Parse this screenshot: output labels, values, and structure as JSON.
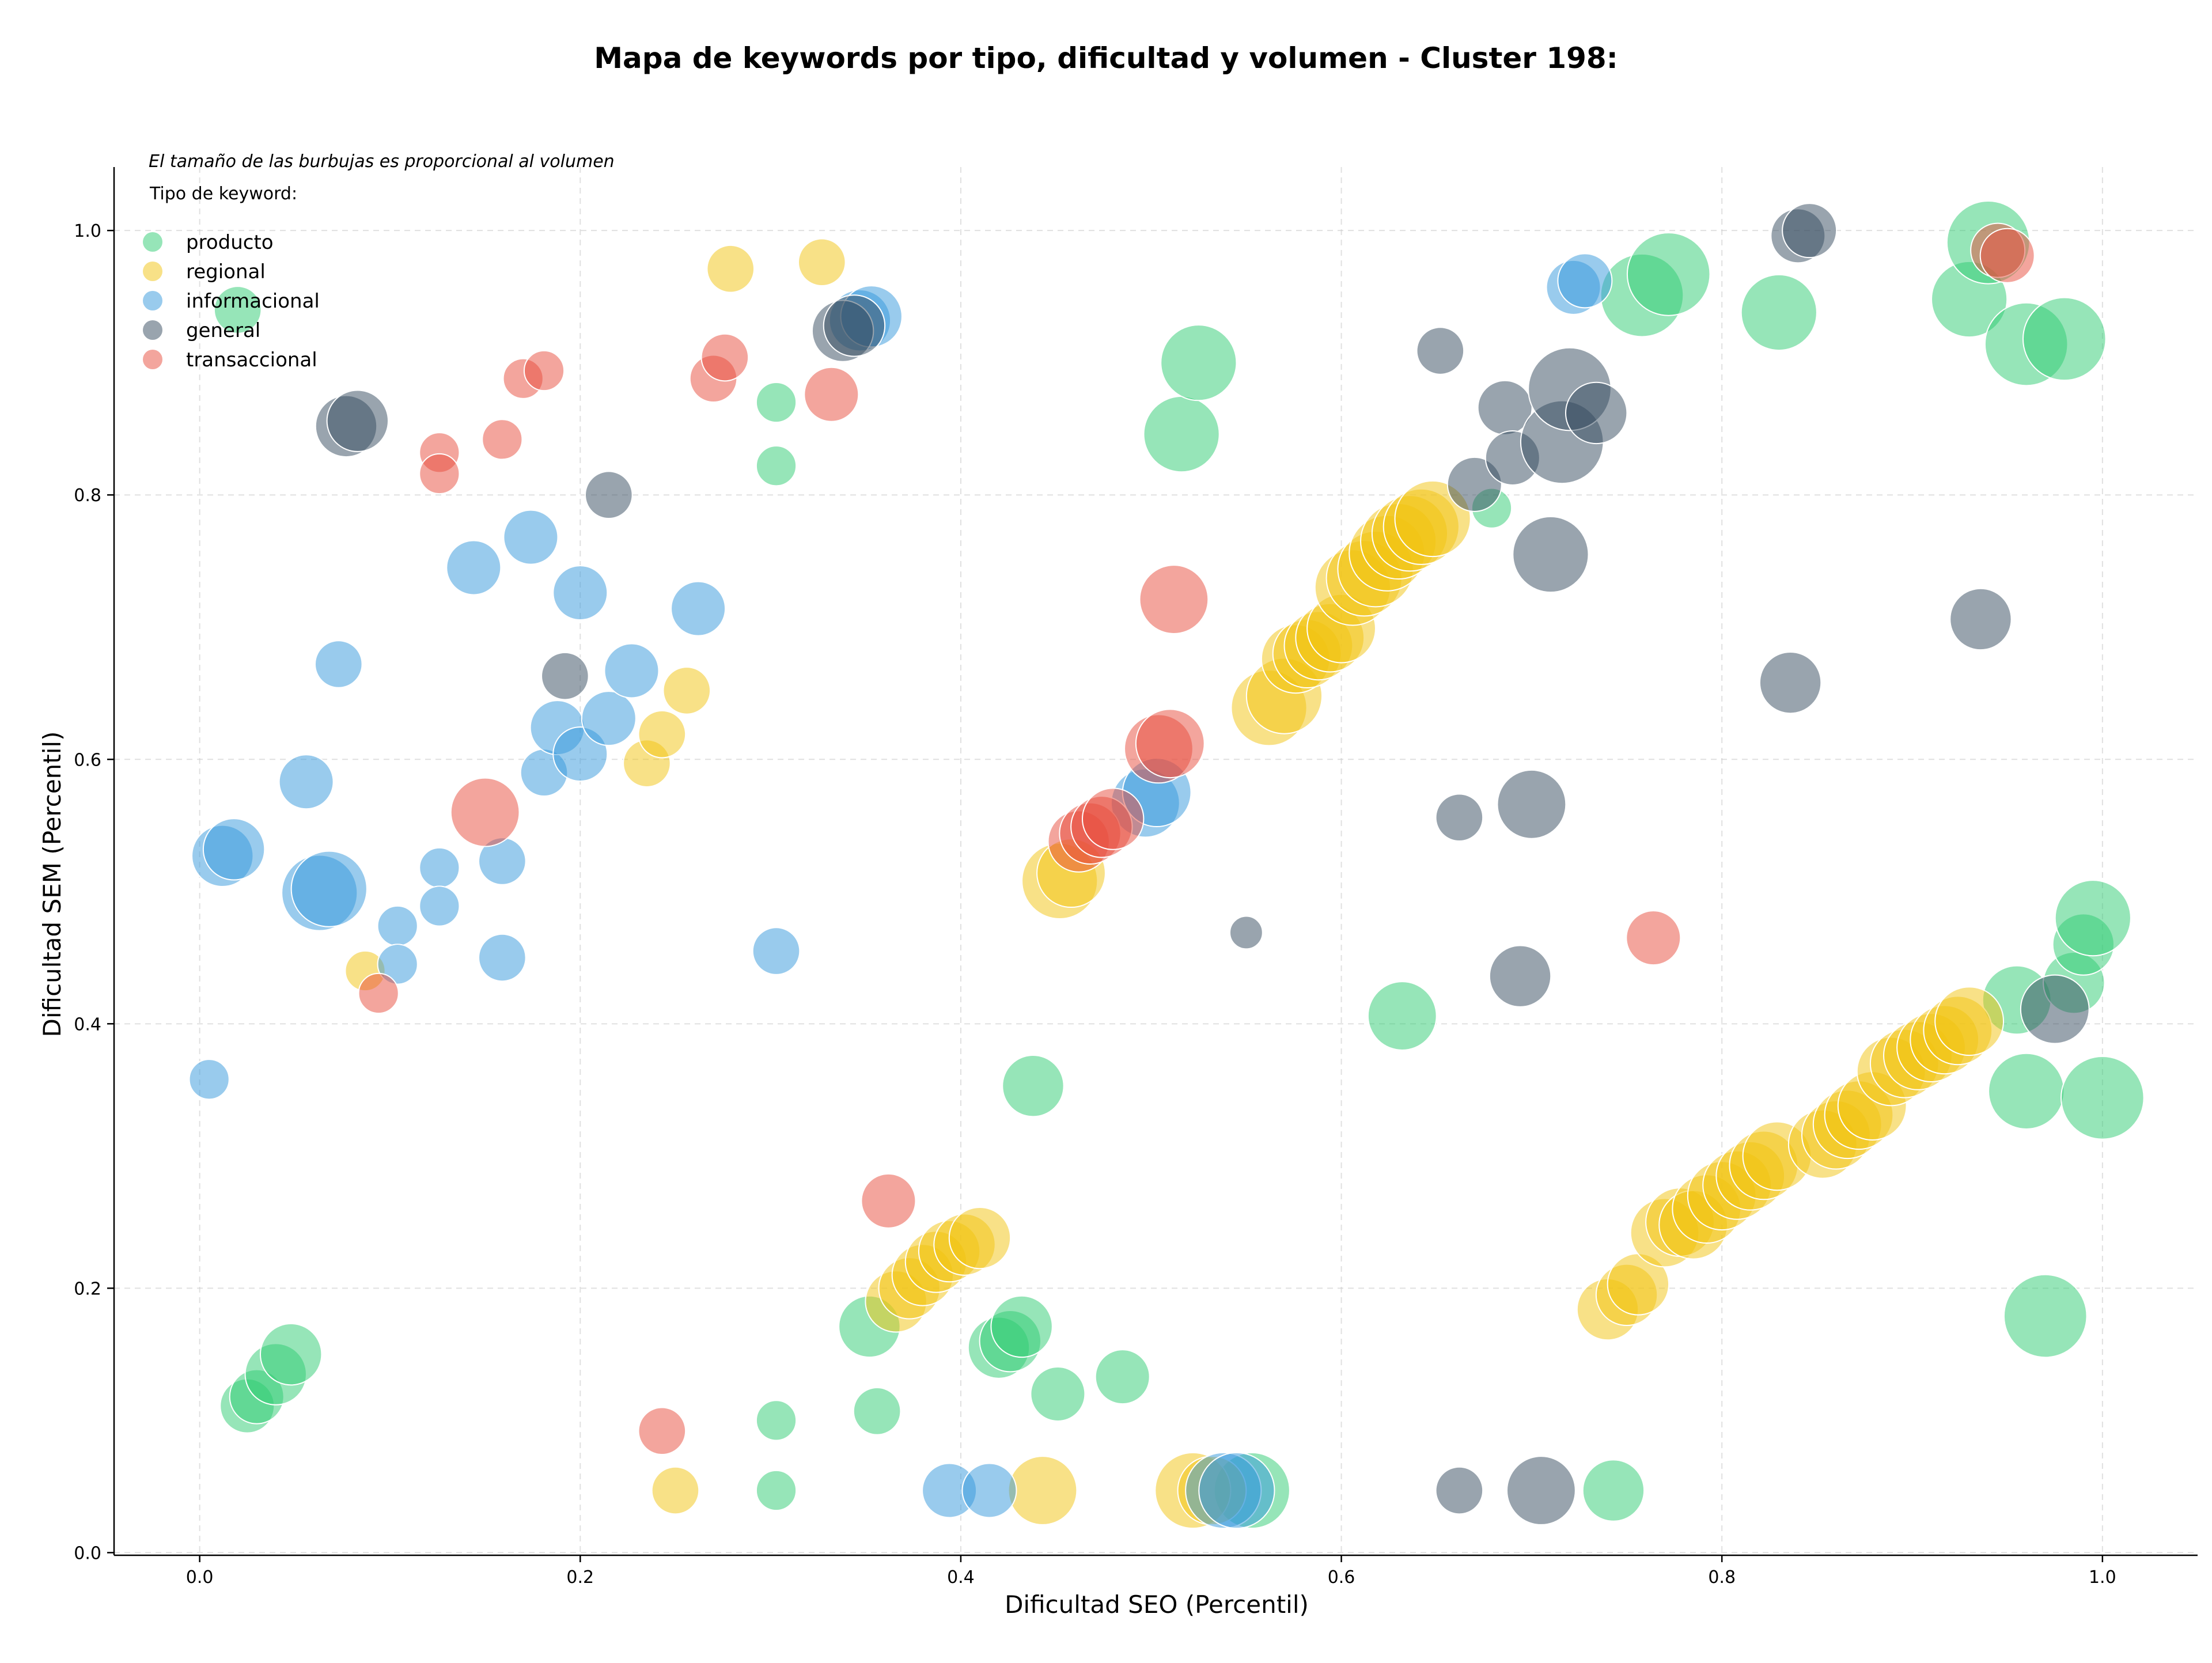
{
  "chart_data": {
    "type": "scatter",
    "title": "Mapa de keywords por tipo, dificultad y volumen - Cluster 198:",
    "xlabel": "Dificultad SEO (Percentil)",
    "ylabel": "Dificultad SEM (Percentil)",
    "xlim": [
      -0.045,
      1.05
    ],
    "ylim": [
      -0.002,
      1.048
    ],
    "xticks": [
      "0.0",
      "0.2",
      "0.4",
      "0.6",
      "0.8",
      "1.0"
    ],
    "yticks": [
      "0.0",
      "0.2",
      "0.4",
      "0.6",
      "0.8",
      "1.0"
    ],
    "grid": true,
    "legend_placement": "top-left",
    "legend_note": "El tamaño de las burbujas es proporcional al volumen",
    "legend_title": "Tipo de keyword:",
    "size_note": "bubble size proportional to volume (relative scale 1-10)",
    "series": [
      {
        "name": "producto",
        "color": "#2ecc71",
        "points": [
          [
            0.02,
            0.94,
            4
          ],
          [
            0.025,
            0.111,
            5
          ],
          [
            0.03,
            0.118,
            5
          ],
          [
            0.04,
            0.135,
            6
          ],
          [
            0.048,
            0.15,
            6
          ],
          [
            0.303,
            0.87,
            3
          ],
          [
            0.303,
            0.822,
            3
          ],
          [
            0.303,
            0.1,
            3
          ],
          [
            0.303,
            0.047,
            3
          ],
          [
            0.352,
            0.171,
            6
          ],
          [
            0.356,
            0.107,
            4
          ],
          [
            0.42,
            0.155,
            6
          ],
          [
            0.426,
            0.16,
            6
          ],
          [
            0.432,
            0.171,
            6
          ],
          [
            0.438,
            0.353,
            6
          ],
          [
            0.451,
            0.12,
            5
          ],
          [
            0.485,
            0.133,
            5
          ],
          [
            0.516,
            0.846,
            8
          ],
          [
            0.525,
            0.9,
            8
          ],
          [
            0.553,
            0.047,
            8
          ],
          [
            0.632,
            0.406,
            7
          ],
          [
            0.679,
            0.79,
            3
          ],
          [
            0.743,
            0.047,
            6
          ],
          [
            0.758,
            0.951,
            9
          ],
          [
            0.772,
            0.967,
            9
          ],
          [
            0.83,
            0.938,
            8
          ],
          [
            0.93,
            0.948,
            8
          ],
          [
            0.94,
            0.991,
            9
          ],
          [
            0.96,
            0.914,
            9
          ],
          [
            0.98,
            0.918,
            9
          ],
          [
            0.955,
            0.418,
            7
          ],
          [
            0.96,
            0.349,
            8
          ],
          [
            0.985,
            0.431,
            6
          ],
          [
            0.99,
            0.46,
            6
          ],
          [
            0.995,
            0.48,
            8
          ],
          [
            1.0,
            0.344,
            9
          ],
          [
            0.97,
            0.179,
            9
          ]
        ]
      },
      {
        "name": "regional",
        "color": "#f1c40f",
        "points": [
          [
            0.087,
            0.44,
            3
          ],
          [
            0.235,
            0.597,
            4
          ],
          [
            0.243,
            0.619,
            4
          ],
          [
            0.256,
            0.652,
            4
          ],
          [
            0.25,
            0.047,
            4
          ],
          [
            0.279,
            0.971,
            4
          ],
          [
            0.327,
            0.976,
            4
          ],
          [
            0.366,
            0.19,
            6
          ],
          [
            0.373,
            0.2,
            6
          ],
          [
            0.38,
            0.21,
            6
          ],
          [
            0.387,
            0.22,
            6
          ],
          [
            0.394,
            0.228,
            6
          ],
          [
            0.402,
            0.233,
            6
          ],
          [
            0.41,
            0.238,
            6
          ],
          [
            0.443,
            0.047,
            7
          ],
          [
            0.452,
            0.508,
            8
          ],
          [
            0.458,
            0.514,
            7
          ],
          [
            0.522,
            0.047,
            8
          ],
          [
            0.532,
            0.047,
            7
          ],
          [
            0.562,
            0.639,
            8
          ],
          [
            0.57,
            0.648,
            8
          ],
          [
            0.576,
            0.676,
            7
          ],
          [
            0.582,
            0.68,
            7
          ],
          [
            0.588,
            0.686,
            7
          ],
          [
            0.594,
            0.692,
            7
          ],
          [
            0.6,
            0.699,
            7
          ],
          [
            0.606,
            0.73,
            8
          ],
          [
            0.612,
            0.737,
            8
          ],
          [
            0.618,
            0.744,
            8
          ],
          [
            0.624,
            0.756,
            8
          ],
          [
            0.63,
            0.765,
            8
          ],
          [
            0.636,
            0.771,
            8
          ],
          [
            0.642,
            0.776,
            8
          ],
          [
            0.648,
            0.782,
            8
          ],
          [
            0.74,
            0.184,
            6
          ],
          [
            0.75,
            0.195,
            6
          ],
          [
            0.756,
            0.203,
            6
          ],
          [
            0.77,
            0.242,
            7
          ],
          [
            0.778,
            0.25,
            7
          ],
          [
            0.785,
            0.248,
            7
          ],
          [
            0.792,
            0.26,
            7
          ],
          [
            0.8,
            0.27,
            7
          ],
          [
            0.808,
            0.278,
            7
          ],
          [
            0.815,
            0.285,
            7
          ],
          [
            0.822,
            0.293,
            7
          ],
          [
            0.829,
            0.3,
            7
          ],
          [
            0.853,
            0.309,
            7
          ],
          [
            0.86,
            0.316,
            7
          ],
          [
            0.866,
            0.324,
            7
          ],
          [
            0.872,
            0.331,
            7
          ],
          [
            0.879,
            0.338,
            7
          ],
          [
            0.889,
            0.364,
            7
          ],
          [
            0.896,
            0.37,
            7
          ],
          [
            0.903,
            0.376,
            7
          ],
          [
            0.91,
            0.382,
            7
          ],
          [
            0.917,
            0.388,
            7
          ],
          [
            0.924,
            0.395,
            7
          ],
          [
            0.93,
            0.402,
            7
          ]
        ]
      },
      {
        "name": "informacional",
        "color": "#3498db",
        "points": [
          [
            0.005,
            0.358,
            3
          ],
          [
            0.012,
            0.527,
            6
          ],
          [
            0.018,
            0.532,
            6
          ],
          [
            0.056,
            0.583,
            5
          ],
          [
            0.063,
            0.499,
            8
          ],
          [
            0.068,
            0.502,
            8
          ],
          [
            0.073,
            0.672,
            4
          ],
          [
            0.104,
            0.474,
            3
          ],
          [
            0.104,
            0.445,
            3
          ],
          [
            0.126,
            0.518,
            3
          ],
          [
            0.126,
            0.489,
            3
          ],
          [
            0.144,
            0.745,
            5
          ],
          [
            0.159,
            0.523,
            4
          ],
          [
            0.159,
            0.45,
            4
          ],
          [
            0.174,
            0.768,
            5
          ],
          [
            0.181,
            0.59,
            4
          ],
          [
            0.188,
            0.624,
            5
          ],
          [
            0.2,
            0.604,
            5
          ],
          [
            0.2,
            0.726,
            5
          ],
          [
            0.215,
            0.631,
            5
          ],
          [
            0.227,
            0.667,
            5
          ],
          [
            0.262,
            0.714,
            5
          ],
          [
            0.303,
            0.455,
            4
          ],
          [
            0.347,
            0.932,
            6
          ],
          [
            0.353,
            0.935,
            6
          ],
          [
            0.394,
            0.047,
            5
          ],
          [
            0.415,
            0.047,
            5
          ],
          [
            0.497,
            0.567,
            7
          ],
          [
            0.503,
            0.575,
            7
          ],
          [
            0.538,
            0.047,
            8
          ],
          [
            0.545,
            0.047,
            8
          ],
          [
            0.722,
            0.957,
            5
          ],
          [
            0.728,
            0.962,
            5
          ]
        ]
      },
      {
        "name": "general",
        "color": "#34495e",
        "points": [
          [
            0.077,
            0.852,
            6
          ],
          [
            0.083,
            0.856,
            6
          ],
          [
            0.192,
            0.663,
            4
          ],
          [
            0.215,
            0.8,
            4
          ],
          [
            0.338,
            0.924,
            6
          ],
          [
            0.344,
            0.928,
            6
          ],
          [
            0.55,
            0.469,
            2
          ],
          [
            0.652,
            0.909,
            4
          ],
          [
            0.662,
            0.556,
            4
          ],
          [
            0.662,
            0.047,
            4
          ],
          [
            0.67,
            0.808,
            5
          ],
          [
            0.686,
            0.866,
            5
          ],
          [
            0.69,
            0.828,
            5
          ],
          [
            0.694,
            0.436,
            6
          ],
          [
            0.7,
            0.566,
            7
          ],
          [
            0.705,
            0.047,
            7
          ],
          [
            0.71,
            0.755,
            8
          ],
          [
            0.716,
            0.84,
            9
          ],
          [
            0.72,
            0.88,
            9
          ],
          [
            0.734,
            0.862,
            6
          ],
          [
            0.836,
            0.658,
            6
          ],
          [
            0.84,
            0.996,
            5
          ],
          [
            0.846,
            1.0,
            5
          ],
          [
            0.936,
            0.706,
            6
          ],
          [
            0.975,
            0.411,
            7
          ]
        ]
      },
      {
        "name": "transaccional",
        "color": "#e74c3c",
        "points": [
          [
            0.094,
            0.423,
            3
          ],
          [
            0.126,
            0.832,
            3
          ],
          [
            0.126,
            0.816,
            3
          ],
          [
            0.15,
            0.56,
            7
          ],
          [
            0.159,
            0.842,
            3
          ],
          [
            0.17,
            0.888,
            3
          ],
          [
            0.181,
            0.894,
            3
          ],
          [
            0.243,
            0.092,
            4
          ],
          [
            0.27,
            0.888,
            4
          ],
          [
            0.276,
            0.904,
            4
          ],
          [
            0.332,
            0.876,
            5
          ],
          [
            0.362,
            0.266,
            5
          ],
          [
            0.462,
            0.538,
            6
          ],
          [
            0.468,
            0.544,
            6
          ],
          [
            0.474,
            0.549,
            6
          ],
          [
            0.48,
            0.555,
            6
          ],
          [
            0.504,
            0.608,
            7
          ],
          [
            0.51,
            0.612,
            7
          ],
          [
            0.512,
            0.721,
            7
          ],
          [
            0.764,
            0.465,
            5
          ],
          [
            0.945,
            0.985,
            5
          ],
          [
            0.95,
            0.981,
            5
          ]
        ]
      }
    ]
  }
}
